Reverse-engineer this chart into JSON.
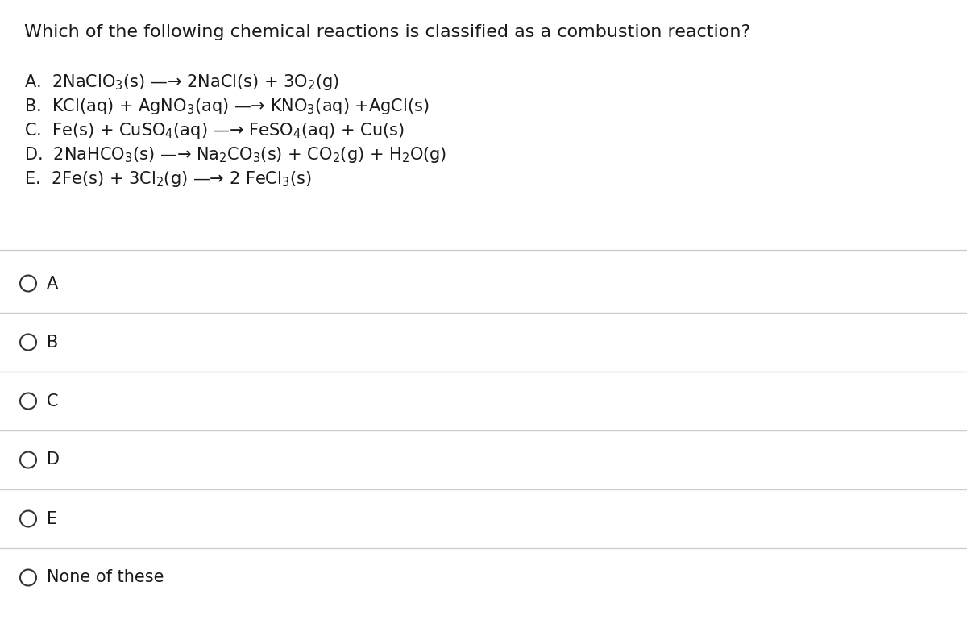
{
  "title": "Which of the following chemical reactions is classified as a combustion reaction?",
  "reactions": [
    "A.  2NaClO$_3$(s) —→ 2NaCl(s) + 3O$_2$(g)",
    "B.  KCl(aq) + AgNO$_3$(aq) —→ KNO$_3$(aq) +AgCl(s)",
    "C.  Fe(s) + CuSO$_4$(aq) —→ FeSO$_4$(aq) + Cu(s)",
    "D.  2NaHCO$_3$(s) —→ Na$_2$CO$_3$(s) + CO$_2$(g) + H$_2$O(g)",
    "E.  2Fe(s) + 3Cl$_2$(g) —→ 2 FeCl$_3$(s)"
  ],
  "options": [
    "A",
    "B",
    "C",
    "D",
    "E",
    "None of these"
  ],
  "bg_color": "#ffffff",
  "text_color": "#1a1a1a",
  "line_color": "#cccccc",
  "title_fontsize": 16,
  "reaction_fontsize": 15,
  "option_fontsize": 15,
  "figwidth": 12.0,
  "figheight": 7.79
}
